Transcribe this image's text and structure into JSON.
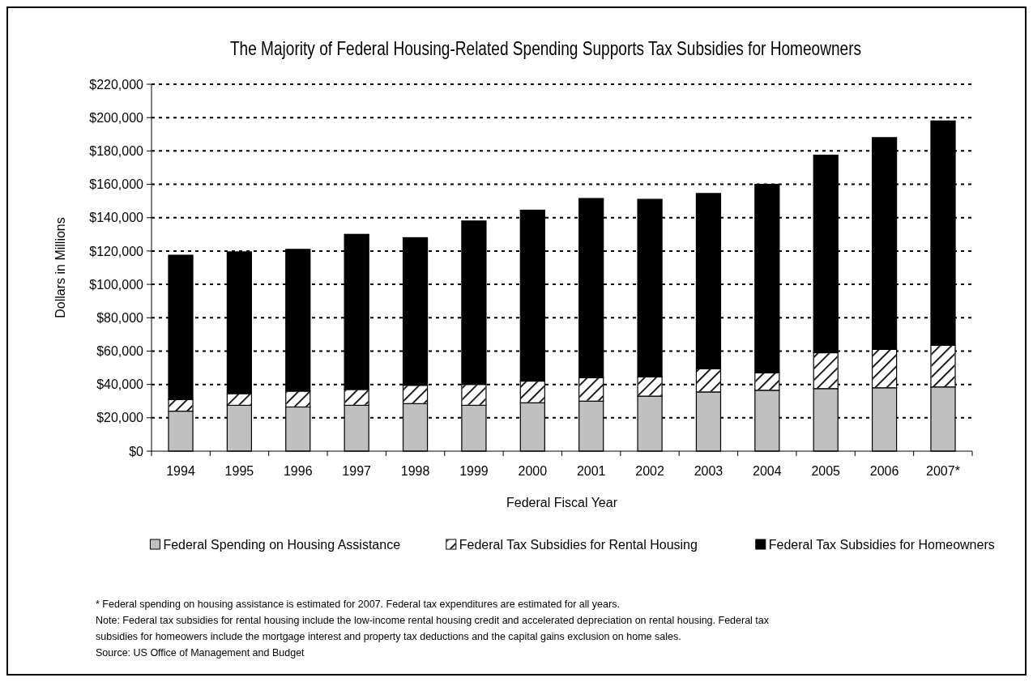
{
  "chart_data": {
    "type": "bar",
    "stacked": true,
    "title": "The Majority of Federal Housing-Related Spending Supports Tax Subsidies for Homeowners",
    "xlabel": "Federal Fiscal Year",
    "ylabel": "Dollars in Millions",
    "categories": [
      "1994",
      "1995",
      "1996",
      "1997",
      "1998",
      "1999",
      "2000",
      "2001",
      "2002",
      "2003",
      "2004",
      "2005",
      "2006",
      "2007*"
    ],
    "series": [
      {
        "name": "Federal Spending on Housing Assistance",
        "color": "#c0c0c0",
        "values": [
          24000,
          27500,
          26500,
          27500,
          28500,
          27500,
          29000,
          30000,
          33000,
          35500,
          36500,
          37500,
          38000,
          38500
        ]
      },
      {
        "name": "Federal Tax Subsidies for Rental Housing",
        "color": "#ffffff",
        "values": [
          7000,
          7000,
          9500,
          9500,
          11000,
          12500,
          13000,
          14000,
          11500,
          14000,
          10500,
          21500,
          23000,
          25000
        ]
      },
      {
        "name": "Federal Tax Subsidies for Homeowners",
        "color": "#000000",
        "values": [
          86500,
          85000,
          85000,
          93000,
          88500,
          98000,
          102500,
          107500,
          106500,
          105000,
          113000,
          118500,
          127000,
          134500
        ]
      }
    ],
    "ylim": [
      0,
      220000
    ],
    "yticks": [
      {
        "value": 0,
        "label": "$0"
      },
      {
        "value": 20000,
        "label": "$20,000"
      },
      {
        "value": 40000,
        "label": "$40,000"
      },
      {
        "value": 60000,
        "label": "$60,000"
      },
      {
        "value": 80000,
        "label": "$80,000"
      },
      {
        "value": 100000,
        "label": "$100,000"
      },
      {
        "value": 120000,
        "label": "$120,000"
      },
      {
        "value": 140000,
        "label": "$140,000"
      },
      {
        "value": 160000,
        "label": "$160,000"
      },
      {
        "value": 180000,
        "label": "$180,000"
      },
      {
        "value": 200000,
        "label": "$200,000"
      },
      {
        "value": 220000,
        "label": "$220,000"
      }
    ],
    "grid": "y",
    "legend": "bottom",
    "annotations": [
      "* Federal spending on housing assistance is estimated for 2007. Federal tax expenditures are estimated for all years.",
      "Note: Federal tax subsidies for rental housing include the low-income rental housing credit and accelerated depreciation on rental housing. Federal tax subsidies for homeowers include the mortgage interest and property tax deductions and the capital gains exclusion on home sales.",
      "Source: US Office of Management and Budget"
    ]
  }
}
